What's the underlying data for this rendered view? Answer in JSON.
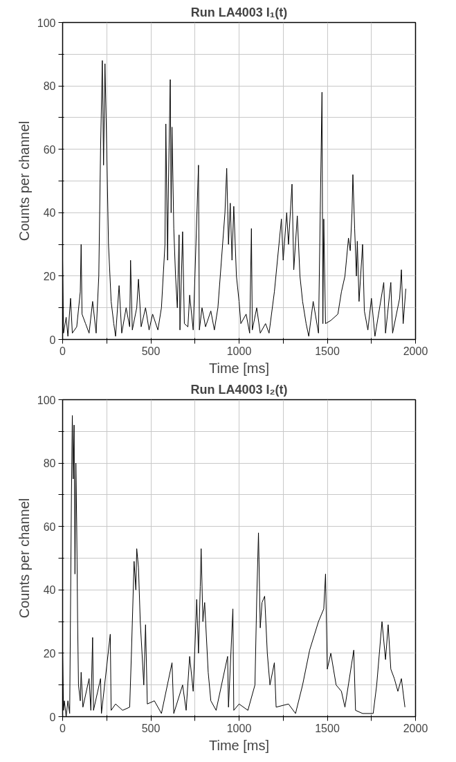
{
  "chart_data": [
    {
      "type": "line",
      "title": "Run LA4003 I₁(t)",
      "xlabel": "Time [ms]",
      "ylabel": "Counts per channel",
      "grid": true,
      "xlim": [
        0,
        2000
      ],
      "ylim": [
        0,
        100
      ],
      "xticks": [
        0,
        {
          "value": 250,
          "label": null
        },
        500,
        {
          "value": 750,
          "label": null
        },
        1000,
        {
          "value": 1250,
          "label": null
        },
        1500,
        {
          "value": 1750,
          "label": null
        },
        2000
      ],
      "yticks": [
        0,
        {
          "value": 10,
          "label": null
        },
        20,
        {
          "value": 30,
          "label": null
        },
        40,
        {
          "value": 50,
          "label": null
        },
        60,
        {
          "value": 70,
          "label": null
        },
        80,
        {
          "value": 90,
          "label": null
        },
        100
      ],
      "series": [
        {
          "color": "#000000",
          "x": [
            0,
            5,
            20,
            30,
            45,
            55,
            80,
            100,
            105,
            110,
            130,
            150,
            170,
            190,
            205,
            215,
            225,
            232,
            240,
            250,
            260,
            275,
            290,
            300,
            320,
            335,
            360,
            380,
            385,
            395,
            420,
            430,
            445,
            470,
            490,
            510,
            540,
            560,
            580,
            585,
            595,
            600,
            610,
            615,
            620,
            630,
            640,
            650,
            660,
            665,
            680,
            690,
            710,
            720,
            740,
            770,
            775,
            790,
            810,
            840,
            860,
            880,
            900,
            920,
            930,
            940,
            950,
            960,
            970,
            985,
            1000,
            1010,
            1040,
            1060,
            1070,
            1075,
            1100,
            1120,
            1150,
            1170,
            1200,
            1240,
            1250,
            1270,
            1280,
            1300,
            1310,
            1330,
            1345,
            1360,
            1380,
            1395,
            1420,
            1450,
            1470,
            1475,
            1480,
            1490,
            1520,
            1560,
            1580,
            1600,
            1620,
            1630,
            1640,
            1645,
            1655,
            1665,
            1670,
            1680,
            1700,
            1710,
            1730,
            1750,
            1770,
            1820,
            1830,
            1860,
            1870,
            1910,
            1920,
            1930,
            1945
          ],
          "values": [
            25,
            2,
            7,
            1,
            13,
            2,
            4,
            15,
            30,
            8,
            5,
            2,
            12,
            2,
            20,
            60,
            88,
            55,
            87,
            60,
            30,
            12,
            5,
            1,
            17,
            2,
            10,
            4,
            25,
            3,
            10,
            19,
            4,
            10,
            3,
            8,
            3,
            10,
            30,
            68,
            25,
            50,
            82,
            40,
            67,
            35,
            20,
            10,
            33,
            3,
            34,
            5,
            4,
            14,
            3,
            55,
            3,
            10,
            4,
            9,
            3,
            10,
            25,
            40,
            54,
            30,
            43,
            25,
            42,
            20,
            12,
            5,
            8,
            2,
            35,
            3,
            10,
            2,
            5,
            2,
            15,
            38,
            25,
            40,
            30,
            49,
            22,
            39,
            20,
            12,
            5,
            1,
            12,
            2,
            78,
            5,
            38,
            5,
            6,
            8,
            15,
            20,
            32,
            28,
            40,
            52,
            35,
            20,
            31,
            12,
            30,
            9,
            3,
            13,
            1,
            18,
            2,
            18,
            2,
            13,
            22,
            5,
            16
          ]
        }
      ]
    },
    {
      "type": "line",
      "title": "Run LA4003 I₂(t)",
      "xlabel": "Time [ms]",
      "ylabel": "Counts per channel",
      "grid": true,
      "xlim": [
        0,
        2000
      ],
      "ylim": [
        0,
        100
      ],
      "xticks": [
        0,
        {
          "value": 250,
          "label": null
        },
        500,
        {
          "value": 750,
          "label": null
        },
        1000,
        {
          "value": 1250,
          "label": null
        },
        1500,
        {
          "value": 1750,
          "label": null
        },
        2000
      ],
      "yticks": [
        0,
        {
          "value": 10,
          "label": null
        },
        20,
        {
          "value": 30,
          "label": null
        },
        40,
        {
          "value": 50,
          "label": null
        },
        60,
        {
          "value": 70,
          "label": null
        },
        80,
        {
          "value": 90,
          "label": null
        },
        100
      ],
      "series": [
        {
          "color": "#000000",
          "x": [
            0,
            5,
            10,
            20,
            30,
            40,
            50,
            55,
            60,
            65,
            70,
            75,
            80,
            85,
            90,
            100,
            105,
            115,
            150,
            160,
            170,
            175,
            215,
            220,
            270,
            275,
            300,
            340,
            380,
            390,
            405,
            415,
            420,
            430,
            440,
            450,
            460,
            470,
            480,
            520,
            560,
            620,
            630,
            680,
            700,
            720,
            740,
            760,
            770,
            780,
            785,
            795,
            805,
            815,
            825,
            840,
            870,
            935,
            940,
            965,
            970,
            1000,
            1050,
            1090,
            1100,
            1110,
            1120,
            1130,
            1145,
            1160,
            1175,
            1200,
            1210,
            1280,
            1320,
            1360,
            1400,
            1450,
            1480,
            1490,
            1500,
            1520,
            1550,
            1580,
            1600,
            1650,
            1660,
            1700,
            1760,
            1780,
            1810,
            1830,
            1845,
            1860,
            1880,
            1900,
            1920,
            1940
          ],
          "values": [
            21,
            2,
            5,
            0,
            5,
            1,
            70,
            95,
            75,
            92,
            45,
            80,
            60,
            30,
            10,
            5,
            14,
            3,
            12,
            2,
            25,
            2,
            12,
            1,
            26,
            2,
            4,
            2,
            3,
            20,
            49,
            40,
            53,
            47,
            30,
            20,
            10,
            29,
            4,
            5,
            1,
            17,
            1,
            10,
            2,
            19,
            8,
            37,
            20,
            41,
            53,
            30,
            36,
            25,
            14,
            5,
            2,
            19,
            3,
            34,
            2,
            4,
            2,
            10,
            37,
            58,
            28,
            36,
            38,
            20,
            10,
            17,
            3,
            4,
            1,
            10,
            21,
            30,
            34,
            45,
            15,
            20,
            10,
            8,
            3,
            21,
            2,
            1,
            1,
            10,
            30,
            18,
            29,
            15,
            12,
            8,
            12,
            3
          ]
        }
      ]
    }
  ]
}
